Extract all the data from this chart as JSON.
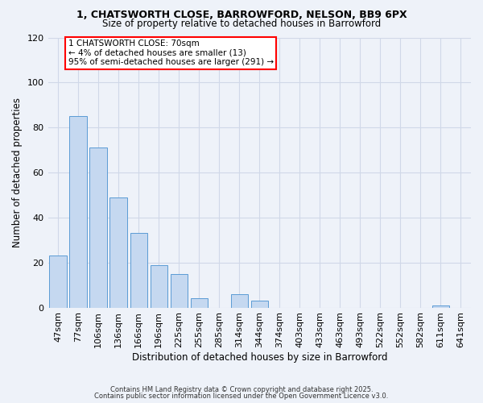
{
  "title1": "1, CHATSWORTH CLOSE, BARROWFORD, NELSON, BB9 6PX",
  "title2": "Size of property relative to detached houses in Barrowford",
  "xlabel": "Distribution of detached houses by size in Barrowford",
  "ylabel": "Number of detached properties",
  "categories": [
    "47sqm",
    "77sqm",
    "106sqm",
    "136sqm",
    "166sqm",
    "196sqm",
    "225sqm",
    "255sqm",
    "285sqm",
    "314sqm",
    "344sqm",
    "374sqm",
    "403sqm",
    "433sqm",
    "463sqm",
    "493sqm",
    "522sqm",
    "552sqm",
    "582sqm",
    "611sqm",
    "641sqm"
  ],
  "values": [
    23,
    85,
    71,
    49,
    33,
    19,
    15,
    4,
    0,
    6,
    3,
    0,
    0,
    0,
    0,
    0,
    0,
    0,
    0,
    1,
    0
  ],
  "bar_color": "#c5d8f0",
  "bar_edge_color": "#5b9bd5",
  "annotation_text": "1 CHATSWORTH CLOSE: 70sqm\n← 4% of detached houses are smaller (13)\n95% of semi-detached houses are larger (291) →",
  "annotation_box_color": "white",
  "annotation_box_edge_color": "red",
  "ylim": [
    0,
    120
  ],
  "yticks": [
    0,
    20,
    40,
    60,
    80,
    100,
    120
  ],
  "grid_color": "#d0d8e8",
  "background_color": "#eef2f9",
  "footer1": "Contains HM Land Registry data © Crown copyright and database right 2025.",
  "footer2": "Contains public sector information licensed under the Open Government Licence v3.0."
}
